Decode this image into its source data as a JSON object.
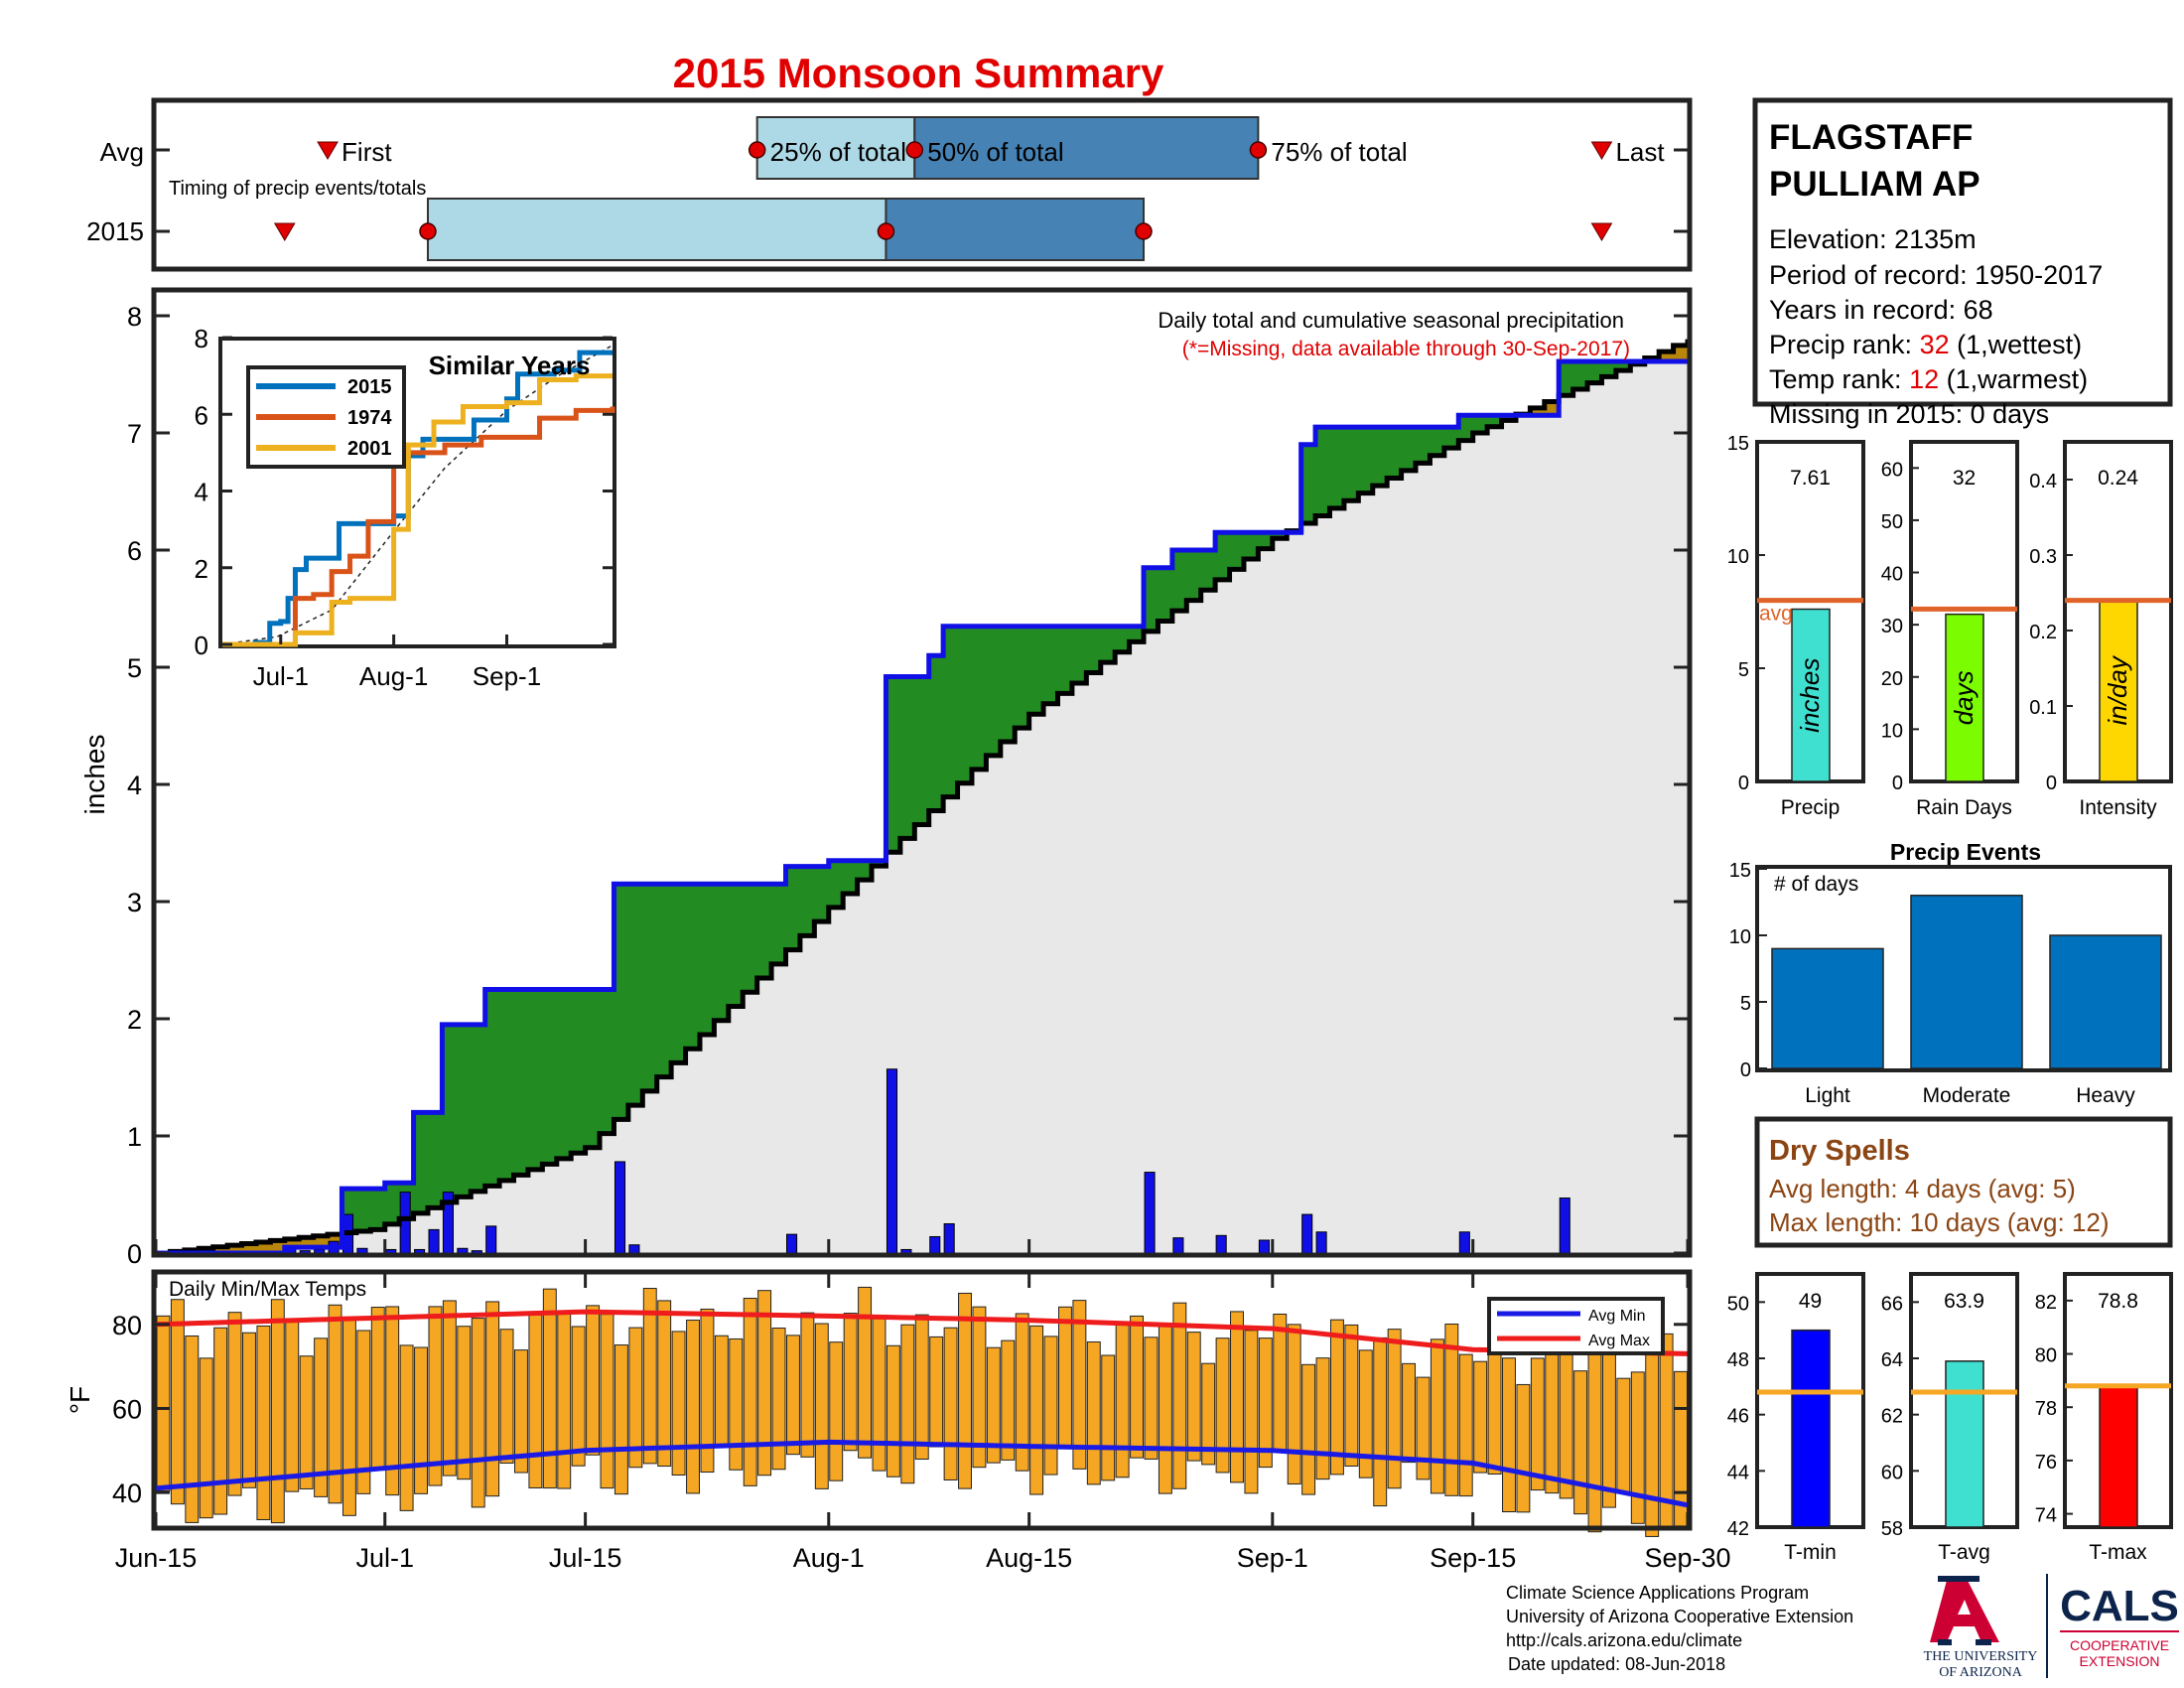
{
  "title": "2015 Monsoon Summary",
  "colors": {
    "title_red": "#e00000",
    "obs_blue": "#1010e6",
    "avg_black": "#000000",
    "above_green": "#228b22",
    "below_brown": "#b8860b",
    "bg_gray": "#e8e8e8",
    "light_blue": "#add8e6",
    "steel_blue": "#4682b4",
    "orange_line": "#e0642a",
    "tbar_orange": "#f5a623",
    "avgmin_blue": "#1a1ae6",
    "avgmax_red": "#ee1c1c",
    "bar_blue": "#0072bd",
    "brown_text": "#8b4513"
  },
  "timing": {
    "row_labels": [
      "Avg",
      "2015"
    ],
    "note": "Timing of precip events/totals",
    "markers_avg": [
      "First",
      "25% of total",
      "50% of total",
      "75% of total",
      "Last"
    ]
  },
  "station": {
    "name_line1": "FLAGSTAFF",
    "name_line2": "PULLIAM AP",
    "elevation": "Elevation: 2135m",
    "period": "Period of record: 1950-2017",
    "years": "Years in record: 68",
    "precip_rank_label": "Precip rank: ",
    "precip_rank_value": "32",
    "precip_rank_note": " (1,wettest)",
    "temp_rank_label": "Temp rank: ",
    "temp_rank_value": "12",
    "temp_rank_note": " (1,warmest)",
    "missing": "Missing in 2015: 0 days"
  },
  "main": {
    "ylabel": "inches",
    "legend_line1": "Daily total and cumulative seasonal precipitation",
    "legend_line2": "(*=Missing, data available through 30-Sep-2017)",
    "x_ticks": [
      "Jun-15",
      "Jul-1",
      "Jul-15",
      "Aug-1",
      "Aug-15",
      "Sep-1",
      "Sep-15",
      "Sep-30"
    ],
    "y_ticks": [
      "0",
      "1",
      "2",
      "3",
      "4",
      "5",
      "6",
      "7",
      "8"
    ]
  },
  "inset": {
    "title": "Similar Years",
    "legend": [
      "2015",
      "1974",
      "2001"
    ],
    "x_ticks": [
      "Jul-1",
      "Aug-1",
      "Sep-1"
    ],
    "y_ticks": [
      "0",
      "2",
      "4",
      "6",
      "8"
    ]
  },
  "temps": {
    "label": "Daily Min/Max Temps",
    "ylabel": "°F",
    "y_ticks": [
      "40",
      "60",
      "80"
    ],
    "legend": [
      "Avg Min",
      "Avg Max"
    ]
  },
  "precip_stats": [
    {
      "value": "7.61",
      "unit": "inches",
      "label": "Precip",
      "ticks": [
        "0",
        "5",
        "10",
        "15"
      ],
      "avg_label": "avg"
    },
    {
      "value": "32",
      "unit": "days",
      "label": "Rain Days",
      "ticks": [
        "0",
        "10",
        "20",
        "30",
        "40",
        "50",
        "60"
      ],
      "avg_label": ""
    },
    {
      "value": "0.24",
      "unit": "in/day",
      "label": "Intensity",
      "ticks": [
        "0",
        "0.1",
        "0.2",
        "0.3",
        "0.4"
      ],
      "avg_label": ""
    }
  ],
  "events": {
    "title": "Precip Events",
    "ylabel": "# of days",
    "y_ticks": [
      "0",
      "5",
      "10",
      "15"
    ],
    "categories": [
      "Light",
      "Moderate",
      "Heavy"
    ]
  },
  "dry_spells": {
    "title": "Dry Spells",
    "avg_length": "Avg length: 4 days (avg: 5)",
    "max_length": "Max length: 10 days (avg: 12)"
  },
  "temp_stats": [
    {
      "value": "49",
      "label": "T-min",
      "ticks": [
        "42",
        "44",
        "46",
        "48",
        "50"
      ]
    },
    {
      "value": "63.9",
      "label": "T-avg",
      "ticks": [
        "58",
        "60",
        "62",
        "64",
        "66"
      ]
    },
    {
      "value": "78.8",
      "label": "T-max",
      "ticks": [
        "74",
        "76",
        "78",
        "80",
        "82"
      ]
    }
  ],
  "footer": {
    "line1": "Climate Science Applications Program",
    "line2": "University of Arizona Cooperative Extension",
    "line3": "http://cals.arizona.edu/climate",
    "line4": "Date updated: 08-Jun-2018",
    "logo_ua1": "THE UNIVERSITY",
    "logo_ua2": "OF ARIZONA",
    "logo_cals": "CALS",
    "logo_coop1": "COOPERATIVE",
    "logo_coop2": "EXTENSION"
  },
  "chart_data": [
    {
      "type": "line",
      "title": "2015 Monsoon Summary",
      "ylabel": "inches",
      "ylim": [
        0,
        8.2
      ],
      "x_range": [
        "2015-06-15",
        "2015-09-30"
      ],
      "daily_precip": {
        "x": [
          "2015-06-24",
          "2015-06-25",
          "2015-06-26",
          "2015-06-27",
          "2015-06-28",
          "2015-06-29",
          "2015-07-01",
          "2015-07-02",
          "2015-07-03",
          "2015-07-04",
          "2015-07-05",
          "2015-07-06",
          "2015-07-07",
          "2015-07-08",
          "2015-07-17",
          "2015-07-18",
          "2015-07-29",
          "2015-08-05",
          "2015-08-06",
          "2015-08-08",
          "2015-08-09",
          "2015-08-23",
          "2015-08-25",
          "2015-08-28",
          "2015-08-31",
          "2015-09-03",
          "2015-09-04",
          "2015-09-14",
          "2015-09-21"
        ],
        "values": [
          0.05,
          0.02,
          0.03,
          0.1,
          0.33,
          0.04,
          0.03,
          0.52,
          0.03,
          0.2,
          0.52,
          0.04,
          0.02,
          0.23,
          0.78,
          0.07,
          0.16,
          1.57,
          0.03,
          0.14,
          0.25,
          0.69,
          0.13,
          0.15,
          0.11,
          0.33,
          0.18,
          0.18,
          0.47
        ]
      },
      "cumulative_2015": {
        "x": [
          "2015-06-15",
          "2015-06-24",
          "2015-06-28",
          "2015-07-01",
          "2015-07-03",
          "2015-07-05",
          "2015-07-08",
          "2015-07-17",
          "2015-07-29",
          "2015-08-01",
          "2015-08-05",
          "2015-08-08",
          "2015-08-09",
          "2015-08-23",
          "2015-08-25",
          "2015-08-28",
          "2015-09-03",
          "2015-09-04",
          "2015-09-14",
          "2015-09-21",
          "2015-09-30"
        ],
        "values": [
          0.0,
          0.05,
          0.55,
          0.6,
          1.2,
          1.95,
          2.25,
          3.15,
          3.3,
          3.35,
          4.92,
          5.1,
          5.35,
          5.85,
          6.0,
          6.15,
          6.9,
          7.05,
          7.15,
          7.61,
          7.61
        ]
      },
      "cumulative_avg": {
        "x": [
          "2015-06-15",
          "2015-06-30",
          "2015-07-15",
          "2015-08-01",
          "2015-08-15",
          "2015-09-01",
          "2015-09-15",
          "2015-09-30"
        ],
        "values": [
          0.0,
          0.2,
          0.9,
          2.95,
          4.6,
          6.1,
          7.0,
          7.8
        ]
      },
      "avg_markers": {
        "first": "2015-06-27",
        "p25": "2015-07-27",
        "p50": "2015-08-07",
        "p75": "2015-08-31",
        "last": "2015-09-24"
      },
      "markers_2015": {
        "first": "2015-06-24",
        "p25": "2015-07-04",
        "p50": "2015-08-05",
        "p75": "2015-08-23",
        "last": "2015-09-24"
      }
    },
    {
      "type": "line",
      "title": "Similar Years",
      "x_range": [
        "06-15",
        "09-30"
      ],
      "ylim": [
        0,
        8
      ],
      "series": [
        {
          "name": "2015",
          "color": "#0072bd",
          "x": [
            "06-15",
            "06-24",
            "06-28",
            "07-01",
            "07-03",
            "07-05",
            "07-08",
            "07-17",
            "08-01",
            "08-05",
            "08-09",
            "08-23",
            "09-01",
            "09-04",
            "09-14",
            "09-21",
            "09-30"
          ],
          "values": [
            0,
            0.05,
            0.55,
            0.6,
            1.2,
            1.95,
            2.25,
            3.15,
            3.35,
            4.92,
            5.35,
            5.85,
            6.4,
            7.05,
            7.15,
            7.61,
            7.61
          ]
        },
        {
          "name": "1974",
          "color": "#d95319",
          "x": [
            "06-15",
            "06-30",
            "07-05",
            "07-10",
            "07-15",
            "07-20",
            "07-25",
            "08-01",
            "08-05",
            "08-15",
            "08-25",
            "09-01",
            "09-10",
            "09-20",
            "09-30"
          ],
          "values": [
            0,
            0,
            1.2,
            1.3,
            1.9,
            2.3,
            3.2,
            4.7,
            5.0,
            5.2,
            5.4,
            5.4,
            5.9,
            6.1,
            6.2
          ]
        },
        {
          "name": "2001",
          "color": "#edb120",
          "x": [
            "06-15",
            "07-05",
            "07-15",
            "07-20",
            "07-28",
            "08-01",
            "08-05",
            "08-12",
            "08-20",
            "09-01",
            "09-10",
            "09-20",
            "09-30"
          ],
          "values": [
            0,
            0.3,
            1.1,
            1.2,
            1.2,
            3.0,
            5.2,
            5.8,
            6.2,
            6.3,
            6.9,
            7.0,
            7.0
          ]
        }
      ]
    },
    {
      "type": "bar",
      "title": "Daily Min/Max Temps",
      "ylabel": "°F",
      "ylim": [
        32,
        92
      ],
      "avg_min": {
        "x": [
          "06-15",
          "07-15",
          "08-01",
          "08-15",
          "09-01",
          "09-15",
          "09-30"
        ],
        "values": [
          41,
          50,
          52,
          51,
          50,
          47,
          37
        ]
      },
      "avg_max": {
        "x": [
          "06-15",
          "07-15",
          "08-01",
          "08-15",
          "09-01",
          "09-15",
          "09-30"
        ],
        "values": [
          80,
          83,
          82,
          81,
          79,
          74,
          73
        ]
      }
    },
    {
      "type": "bar",
      "categories": [
        "Precip",
        "Rain Days",
        "Intensity"
      ],
      "values": [
        7.61,
        32,
        0.24
      ],
      "averages": [
        8.0,
        33,
        0.24
      ],
      "ylims": [
        [
          0,
          15
        ],
        [
          0,
          65
        ],
        [
          0,
          0.45
        ]
      ]
    },
    {
      "type": "bar",
      "title": "Precip Events",
      "ylabel": "# of days",
      "categories": [
        "Light",
        "Moderate",
        "Heavy"
      ],
      "values": [
        9,
        13,
        10
      ],
      "ylim": [
        0,
        15
      ]
    },
    {
      "type": "bar",
      "categories": [
        "T-min",
        "T-avg",
        "T-max"
      ],
      "values": [
        49,
        63.9,
        78.8
      ],
      "averages": [
        46.8,
        62.8,
        78.8
      ],
      "ylims": [
        [
          42,
          51
        ],
        [
          58,
          67
        ],
        [
          73.5,
          83
        ]
      ]
    }
  ]
}
